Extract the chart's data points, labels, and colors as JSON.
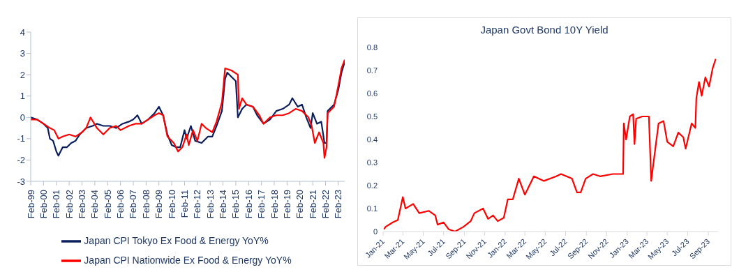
{
  "chart_data": [
    {
      "type": "line",
      "legend": "bottom",
      "ylim": [
        -3,
        4
      ],
      "yticks": [
        -3,
        -2,
        -1,
        0,
        1,
        2,
        3,
        4
      ],
      "xlim": [
        "1999-02",
        "2023-08"
      ],
      "xticks": [
        {
          "value": "1999-02",
          "label": "Feb-99"
        },
        {
          "value": "2000-02",
          "label": "Feb-00"
        },
        {
          "value": "2001-02",
          "label": "Feb-01"
        },
        {
          "value": "2002-02",
          "label": "Feb-02"
        },
        {
          "value": "2003-02",
          "label": "Feb-03"
        },
        {
          "value": "2004-02",
          "label": "Feb-04"
        },
        {
          "value": "2005-02",
          "label": "Feb-05"
        },
        {
          "value": "2006-02",
          "label": "Feb-06"
        },
        {
          "value": "2007-02",
          "label": "Feb-07"
        },
        {
          "value": "2008-02",
          "label": "Feb-08"
        },
        {
          "value": "2009-02",
          "label": "Feb-09"
        },
        {
          "value": "2010-02",
          "label": "Feb-10"
        },
        {
          "value": "2011-02",
          "label": "Feb-11"
        },
        {
          "value": "2012-02",
          "label": "Feb-12"
        },
        {
          "value": "2013-02",
          "label": "Feb-13"
        },
        {
          "value": "2014-02",
          "label": "Feb-14"
        },
        {
          "value": "2015-02",
          "label": "Feb-15"
        },
        {
          "value": "2016-02",
          "label": "Feb-16"
        },
        {
          "value": "2017-02",
          "label": "Feb-17"
        },
        {
          "value": "2018-02",
          "label": "Feb-18"
        },
        {
          "value": "2019-02",
          "label": "Feb-19"
        },
        {
          "value": "2020-02",
          "label": "Feb-20"
        },
        {
          "value": "2021-02",
          "label": "Feb-21"
        },
        {
          "value": "2022-02",
          "label": "Feb-22"
        },
        {
          "value": "2023-02",
          "label": "Feb-23"
        }
      ],
      "series": [
        {
          "name": "Japan CPI Tokyo Ex Food & Energy YoY%",
          "color": "#0b1f5c",
          "x": [
            "1999-02",
            "1999-08",
            "2000-02",
            "2000-06",
            "2000-08",
            "2000-11",
            "2001-02",
            "2001-04",
            "2001-08",
            "2001-12",
            "2002-04",
            "2002-08",
            "2002-12",
            "2003-06",
            "2003-12",
            "2004-04",
            "2004-10",
            "2005-04",
            "2005-10",
            "2006-04",
            "2006-10",
            "2007-02",
            "2007-06",
            "2007-10",
            "2008-04",
            "2008-10",
            "2009-02",
            "2009-06",
            "2009-10",
            "2010-02",
            "2010-06",
            "2010-10",
            "2011-02",
            "2011-04",
            "2011-08",
            "2011-12",
            "2012-06",
            "2012-12",
            "2013-04",
            "2013-08",
            "2014-01",
            "2014-04",
            "2014-06",
            "2014-10",
            "2015-02",
            "2015-04",
            "2015-08",
            "2015-12",
            "2016-06",
            "2016-10",
            "2017-04",
            "2017-10",
            "2018-04",
            "2018-10",
            "2019-04",
            "2019-07",
            "2019-12",
            "2020-04",
            "2020-08",
            "2020-12",
            "2021-02",
            "2021-06",
            "2021-10",
            "2022-01",
            "2022-03",
            "2022-04",
            "2022-10",
            "2023-02",
            "2023-05",
            "2023-08"
          ],
          "values": [
            0,
            -0.1,
            -0.3,
            -0.5,
            -1.0,
            -1.1,
            -1.6,
            -1.8,
            -1.4,
            -1.4,
            -1.2,
            -1.1,
            -0.8,
            -0.5,
            -0.4,
            -0.3,
            -0.4,
            -0.4,
            -0.5,
            -0.3,
            -0.2,
            -0.1,
            0.1,
            -0.3,
            -0.1,
            0.2,
            0.5,
            0.1,
            -0.8,
            -1.3,
            -1.4,
            -1.4,
            -0.6,
            -1.0,
            -0.4,
            -1.1,
            -1.2,
            -0.9,
            -0.9,
            -0.4,
            0.3,
            1.8,
            2.1,
            1.9,
            1.7,
            0.0,
            0.4,
            0.6,
            0.5,
            0.1,
            -0.3,
            -0.1,
            0.3,
            0.4,
            0.6,
            0.9,
            0.5,
            0.6,
            0.0,
            -0.5,
            0.2,
            -0.3,
            -0.2,
            -1.2,
            -1.2,
            0.3,
            0.6,
            1.3,
            2.1,
            2.6
          ]
        },
        {
          "name": "Japan CPI Nationwide Ex Food & Energy YoY%",
          "color": "#ff0000",
          "x": [
            "1999-02",
            "1999-08",
            "2000-02",
            "2000-08",
            "2000-12",
            "2001-04",
            "2001-08",
            "2002-02",
            "2002-08",
            "2003-02",
            "2003-06",
            "2003-10",
            "2004-04",
            "2004-10",
            "2005-04",
            "2005-10",
            "2006-02",
            "2006-10",
            "2007-04",
            "2007-10",
            "2008-04",
            "2008-10",
            "2009-02",
            "2009-06",
            "2009-10",
            "2010-04",
            "2010-08",
            "2010-12",
            "2011-04",
            "2011-06",
            "2011-10",
            "2012-02",
            "2012-06",
            "2012-10",
            "2013-04",
            "2013-08",
            "2014-01",
            "2014-04",
            "2014-10",
            "2015-04",
            "2015-05",
            "2015-08",
            "2015-12",
            "2016-06",
            "2016-12",
            "2017-04",
            "2017-10",
            "2018-04",
            "2018-10",
            "2019-04",
            "2019-10",
            "2020-04",
            "2020-10",
            "2021-01",
            "2021-04",
            "2021-08",
            "2021-12",
            "2022-01",
            "2022-03",
            "2022-04",
            "2022-10",
            "2023-02",
            "2023-05",
            "2023-08"
          ],
          "values": [
            -0.1,
            -0.1,
            -0.3,
            -0.5,
            -0.6,
            -1.0,
            -0.9,
            -0.8,
            -0.9,
            -0.7,
            -0.5,
            0.0,
            -0.5,
            -0.8,
            -0.5,
            -0.4,
            -0.6,
            -0.4,
            -0.3,
            -0.3,
            -0.1,
            0.1,
            0.2,
            0.1,
            -0.9,
            -1.2,
            -1.6,
            -1.4,
            -0.8,
            -1.3,
            -0.6,
            -1.1,
            -0.3,
            -0.5,
            -0.7,
            -0.2,
            0.7,
            2.3,
            2.2,
            2.0,
            0.4,
            0.9,
            0.6,
            0.5,
            0.1,
            -0.3,
            0.0,
            0.1,
            0.1,
            0.2,
            0.4,
            0.3,
            0.0,
            -0.4,
            -1.2,
            -0.7,
            -1.2,
            -1.9,
            -1.4,
            0.2,
            0.5,
            1.5,
            2.3,
            2.7
          ]
        }
      ]
    },
    {
      "type": "line",
      "title": "Japan Govt Bond 10Y Yield",
      "ylim": [
        0,
        0.8
      ],
      "yticks": [
        0,
        0.1,
        0.2,
        0.3,
        0.4,
        0.5,
        0.6,
        0.7,
        0.8
      ],
      "xlim": [
        "2021-01-01",
        "2023-09-30"
      ],
      "xticks": [
        {
          "value": "2021-01-01",
          "label": "Jan-21"
        },
        {
          "value": "2021-03-01",
          "label": "Mar-21"
        },
        {
          "value": "2021-05-01",
          "label": "May-21"
        },
        {
          "value": "2021-07-01",
          "label": "Jul-21"
        },
        {
          "value": "2021-09-01",
          "label": "Sep-21"
        },
        {
          "value": "2021-11-01",
          "label": "Nov-21"
        },
        {
          "value": "2022-01-01",
          "label": "Jan-22"
        },
        {
          "value": "2022-03-01",
          "label": "Mar-22"
        },
        {
          "value": "2022-05-01",
          "label": "May-22"
        },
        {
          "value": "2022-07-01",
          "label": "Jul-22"
        },
        {
          "value": "2022-09-01",
          "label": "Sep-22"
        },
        {
          "value": "2022-11-01",
          "label": "Nov-22"
        },
        {
          "value": "2023-01-01",
          "label": "Jan-23"
        },
        {
          "value": "2023-03-01",
          "label": "Mar-23"
        },
        {
          "value": "2023-05-01",
          "label": "May-23"
        },
        {
          "value": "2023-07-01",
          "label": "Jul-23"
        },
        {
          "value": "2023-09-01",
          "label": "Sep-23"
        }
      ],
      "series": [
        {
          "color": "#ff0000",
          "x": [
            "2021-01-04",
            "2021-01-08",
            "2021-01-30",
            "2021-02-14",
            "2021-03-01",
            "2021-03-09",
            "2021-04-01",
            "2021-04-19",
            "2021-05-18",
            "2021-06-06",
            "2021-06-13",
            "2021-07-01",
            "2021-07-16",
            "2021-08-04",
            "2021-08-29",
            "2021-09-20",
            "2021-10-01",
            "2021-10-27",
            "2021-11-11",
            "2021-11-26",
            "2021-12-10",
            "2021-12-28",
            "2022-01-09",
            "2022-01-24",
            "2022-02-11",
            "2022-03-01",
            "2022-03-28",
            "2022-04-27",
            "2022-06-03",
            "2022-06-17",
            "2022-07-20",
            "2022-08-04",
            "2022-08-15",
            "2022-08-30",
            "2022-09-21",
            "2022-10-12",
            "2022-11-19",
            "2022-12-20",
            "2022-12-22",
            "2022-12-29",
            "2023-01-09",
            "2023-01-19",
            "2023-01-23",
            "2023-01-28",
            "2023-02-15",
            "2023-03-07",
            "2023-03-14",
            "2023-03-21",
            "2023-04-05",
            "2023-04-20",
            "2023-05-01",
            "2023-05-19",
            "2023-06-03",
            "2023-06-18",
            "2023-06-25",
            "2023-07-13",
            "2023-07-24",
            "2023-07-27",
            "2023-08-04",
            "2023-08-12",
            "2023-08-23",
            "2023-09-03",
            "2023-09-14",
            "2023-09-23"
          ],
          "values": [
            0.01,
            0.02,
            0.04,
            0.05,
            0.15,
            0.1,
            0.12,
            0.08,
            0.09,
            0.07,
            0.03,
            0.04,
            0.01,
            0.0,
            0.02,
            0.045,
            0.08,
            0.1,
            0.055,
            0.07,
            0.045,
            0.06,
            0.14,
            0.14,
            0.23,
            0.16,
            0.24,
            0.22,
            0.24,
            0.25,
            0.23,
            0.17,
            0.17,
            0.23,
            0.25,
            0.24,
            0.25,
            0.25,
            0.47,
            0.4,
            0.5,
            0.51,
            0.38,
            0.49,
            0.5,
            0.5,
            0.22,
            0.3,
            0.47,
            0.48,
            0.39,
            0.37,
            0.43,
            0.41,
            0.36,
            0.47,
            0.45,
            0.58,
            0.65,
            0.59,
            0.67,
            0.63,
            0.71,
            0.75
          ]
        }
      ]
    }
  ]
}
